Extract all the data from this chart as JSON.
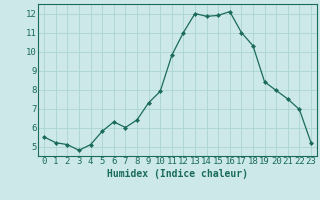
{
  "x": [
    0,
    1,
    2,
    3,
    4,
    5,
    6,
    7,
    8,
    9,
    10,
    11,
    12,
    13,
    14,
    15,
    16,
    17,
    18,
    19,
    20,
    21,
    22,
    23
  ],
  "y": [
    5.5,
    5.2,
    5.1,
    4.8,
    5.1,
    5.8,
    6.3,
    6.0,
    6.4,
    7.3,
    7.9,
    9.8,
    11.0,
    12.0,
    11.85,
    11.9,
    12.1,
    11.0,
    10.3,
    8.4,
    7.95,
    7.5,
    6.95,
    5.2
  ],
  "line_color": "#1a6b5a",
  "marker_style": "D",
  "marker_size": 2,
  "bg_color": "#cce8e8",
  "grid_color": "#aad4d0",
  "xlabel": "Humidex (Indice chaleur)",
  "xlim": [
    -0.5,
    23.5
  ],
  "ylim": [
    4.5,
    12.5
  ],
  "yticks": [
    5,
    6,
    7,
    8,
    9,
    10,
    11,
    12
  ],
  "xticks": [
    0,
    1,
    2,
    3,
    4,
    5,
    6,
    7,
    8,
    9,
    10,
    11,
    12,
    13,
    14,
    15,
    16,
    17,
    18,
    19,
    20,
    21,
    22,
    23
  ],
  "xlabel_fontsize": 7,
  "tick_fontsize": 6.5
}
